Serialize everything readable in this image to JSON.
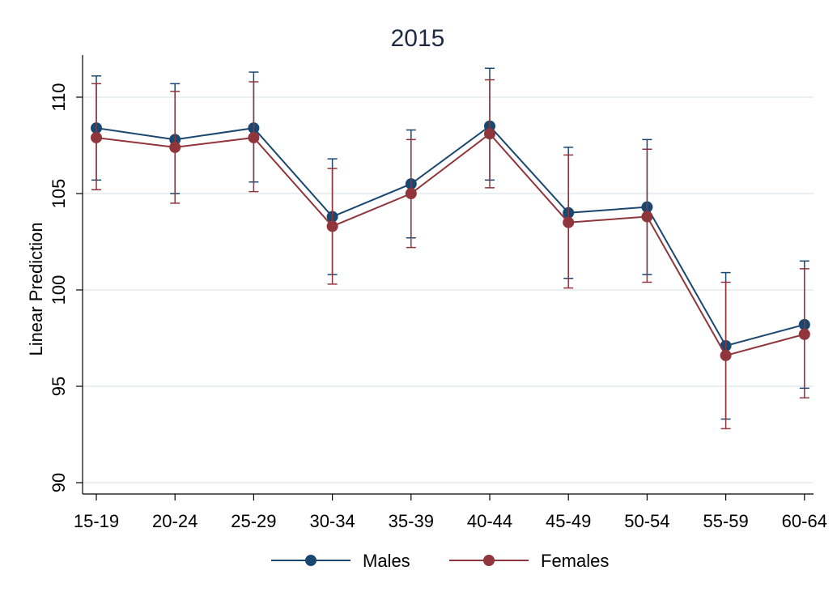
{
  "chart_data": {
    "type": "line",
    "title": "2015",
    "xlabel": "",
    "ylabel": "Linear Prediction",
    "ylim": [
      89.5,
      112
    ],
    "yticks": [
      90,
      95,
      100,
      105,
      110
    ],
    "grid": true,
    "legend_position": "bottom",
    "categories": [
      "15-19",
      "20-24",
      "25-29",
      "30-34",
      "35-39",
      "40-44",
      "45-49",
      "50-54",
      "55-59",
      "60-64"
    ],
    "series": [
      {
        "name": "Males",
        "color": "#1a476f",
        "values": [
          108.4,
          107.8,
          108.4,
          103.8,
          105.5,
          108.5,
          104.0,
          104.3,
          97.1,
          98.2
        ],
        "ci_low": [
          105.7,
          105.0,
          105.6,
          100.8,
          102.7,
          105.7,
          100.6,
          100.8,
          93.3,
          94.9
        ],
        "ci_high": [
          111.1,
          110.7,
          111.3,
          106.8,
          108.3,
          111.5,
          107.4,
          107.8,
          100.9,
          101.5
        ]
      },
      {
        "name": "Females",
        "color": "#90353b",
        "values": [
          107.9,
          107.4,
          107.9,
          103.3,
          105.0,
          108.1,
          103.5,
          103.8,
          96.6,
          97.7
        ],
        "ci_low": [
          105.2,
          104.5,
          105.1,
          100.3,
          102.2,
          105.3,
          100.1,
          100.4,
          92.8,
          94.4
        ],
        "ci_high": [
          110.7,
          110.3,
          110.8,
          106.3,
          107.8,
          110.9,
          107.0,
          107.3,
          100.4,
          101.1
        ]
      }
    ]
  }
}
